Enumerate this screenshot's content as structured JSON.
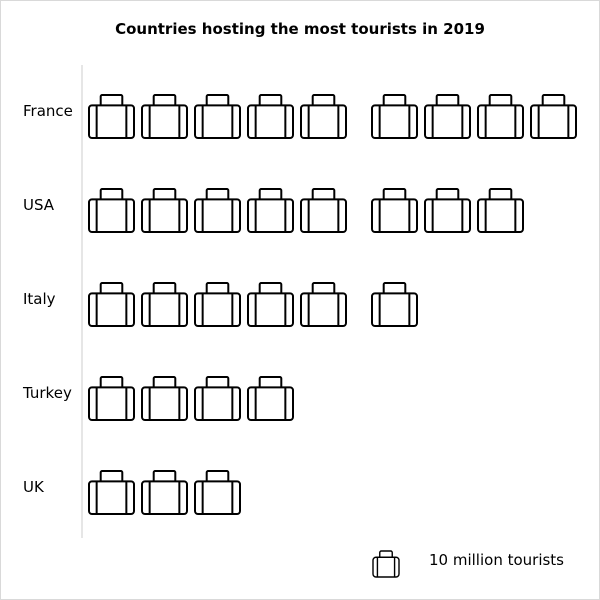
{
  "chart_data": {
    "type": "pictograph",
    "title": "Countries hosting the most tourists in 2019",
    "icon": "suitcase-icon",
    "icon_value": 10,
    "icon_unit_label": "10 million tourists",
    "categories": [
      "France",
      "USA",
      "Italy",
      "Turkey",
      "UK"
    ],
    "values": [
      90,
      80,
      60,
      40,
      30
    ],
    "icon_counts": [
      9,
      8,
      6,
      4,
      3
    ],
    "legend_placement": "bottom-right",
    "colors": {
      "stroke": "#000000",
      "axis": "#cccccc"
    }
  }
}
